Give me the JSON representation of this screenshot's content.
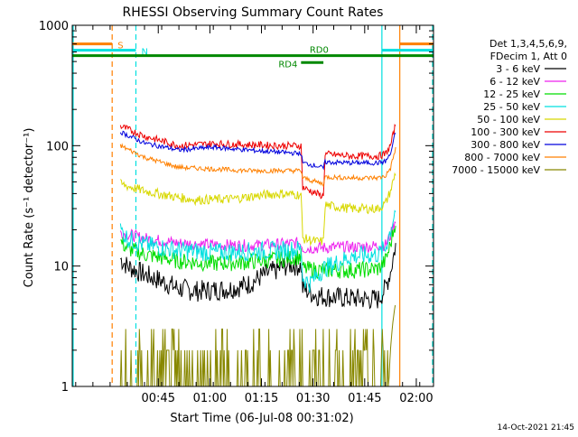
{
  "chart_data": {
    "type": "line",
    "title": "RHESSI Observing Summary Count Rates",
    "xlabel": "Start Time (06-Jul-08 00:31:02)",
    "ylabel": "Count Rate (s⁻¹ detector⁻¹)",
    "yscale": "log",
    "ylim": [
      1,
      1000
    ],
    "xlim_minutes_after_start": [
      -11,
      94
    ],
    "x_ticks": [
      "00:45",
      "01:00",
      "01:15",
      "01:30",
      "01:45",
      "02:00"
    ],
    "x_tick_minutes": [
      14,
      29,
      44,
      59,
      74,
      89
    ],
    "y_ticks": [
      "1",
      "10",
      "100",
      "1000"
    ],
    "y_tick_values": [
      1,
      10,
      100,
      1000
    ],
    "footer_date": "14-Oct-2021 21:45",
    "legend": {
      "header": [
        "Det 1,3,4,5,6,9,",
        "FDecim 1, Att 0"
      ],
      "entries": [
        {
          "label": "3 - 6 keV",
          "color": "#000000"
        },
        {
          "label": "6 - 12 keV",
          "color": "#ee22ee"
        },
        {
          "label": "12 - 25 keV",
          "color": "#00dd00"
        },
        {
          "label": "25 - 50 keV",
          "color": "#00e0e0"
        },
        {
          "label": "50 - 100 keV",
          "color": "#d8d800"
        },
        {
          "label": "100 - 300 keV",
          "color": "#ee0000"
        },
        {
          "label": "300 - 800 keV",
          "color": "#0000dd"
        },
        {
          "label": "800 - 7000 keV",
          "color": "#ff8000"
        },
        {
          "label": "7000 - 15000 keV",
          "color": "#888800"
        }
      ]
    },
    "flags": [
      {
        "label": "S",
        "color": "#ff8000",
        "value": 700,
        "x_start": -11,
        "x_end": 0.6,
        "x_end2": 96,
        "x_resume": 84.2
      },
      {
        "label": "N",
        "color": "#00e0e0",
        "value": 620,
        "x_start": -11,
        "x_end": 7.5,
        "x_end2": 96,
        "x_resume": 79
      },
      {
        "label": "RD0",
        "color": "#008800",
        "value": 560,
        "x_start": -11,
        "x_end": 96
      },
      {
        "label": "RD4",
        "color": "#008800",
        "value": 490,
        "x_start": 55.5,
        "x_end": 62
      }
    ],
    "vertical_markers": [
      {
        "minute": -11,
        "color": "#00e0e0",
        "style": "solid"
      },
      {
        "minute": 0.6,
        "color": "#ff8000",
        "style": "dashed"
      },
      {
        "minute": 7.5,
        "color": "#00e0e0",
        "style": "dashed"
      },
      {
        "minute": 79,
        "color": "#00e0e0",
        "style": "solid"
      },
      {
        "minute": 84.2,
        "color": "#ff8000",
        "style": "solid"
      },
      {
        "minute": 94,
        "color": "#ff8000",
        "style": "dashed"
      },
      {
        "minute": 94.5,
        "color": "#00e0e0",
        "style": "dashed"
      }
    ],
    "data_span_minutes": [
      3,
      83
    ],
    "series": [
      {
        "name": "3 - 6 keV",
        "color": "#000000",
        "noise": 0.09,
        "x": [
          3,
          5,
          10,
          15,
          20,
          25,
          30,
          35,
          40,
          44,
          48,
          52,
          55.5,
          56,
          60,
          65,
          70,
          75,
          78,
          80,
          81.5,
          83
        ],
        "values": [
          11.5,
          10,
          8.5,
          7.5,
          6.5,
          6.2,
          6.3,
          6.5,
          7,
          8.2,
          9.2,
          10.3,
          10,
          6.5,
          5.7,
          5.5,
          5.4,
          5.3,
          5.3,
          6.5,
          9,
          15
        ]
      },
      {
        "name": "6 - 12 keV",
        "color": "#ee22ee",
        "noise": 0.05,
        "x": [
          3,
          10,
          20,
          30,
          40,
          50,
          55.5,
          56,
          65,
          75,
          80,
          81.5,
          83
        ],
        "values": [
          19,
          17,
          15.5,
          15,
          14.8,
          15.2,
          15.6,
          14,
          14.3,
          14.5,
          15,
          18,
          25
        ]
      },
      {
        "name": "12 - 25 keV",
        "color": "#00dd00",
        "noise": 0.07,
        "x": [
          3,
          5,
          10,
          20,
          30,
          40,
          50,
          55.5,
          56,
          60,
          70,
          78,
          80,
          81.5,
          83
        ],
        "values": [
          16,
          14,
          12.5,
          11,
          10.5,
          10.8,
          11.5,
          12,
          9.5,
          9.3,
          9.2,
          9.5,
          11,
          15,
          24
        ]
      },
      {
        "name": "25 - 50 keV",
        "color": "#00e0e0",
        "noise": 0.08,
        "x": [
          3,
          5,
          10,
          20,
          30,
          40,
          50,
          55.5,
          56,
          58,
          62,
          70,
          78,
          80,
          81.5,
          83
        ],
        "values": [
          20,
          17,
          15,
          13.5,
          13,
          13.2,
          13.5,
          13.8,
          8,
          7.2,
          9.5,
          12,
          12.5,
          14,
          20,
          30
        ]
      },
      {
        "name": "50 - 100 keV",
        "color": "#d8d800",
        "noise": 0.04,
        "x": [
          3,
          10,
          20,
          25,
          35,
          45,
          50,
          55.5,
          56,
          60,
          62,
          62.5,
          70,
          78,
          80,
          81.5,
          83
        ],
        "values": [
          48,
          42,
          37,
          35.5,
          36,
          39,
          40,
          39,
          17,
          16,
          16,
          32,
          30,
          30,
          33,
          42,
          60
        ]
      },
      {
        "name": "100 - 300 keV",
        "color": "#ee0000",
        "noise": 0.03,
        "x": [
          3,
          10,
          20,
          30,
          40,
          50,
          55.5,
          56,
          60,
          62,
          62.5,
          70,
          78,
          80,
          81.5,
          83
        ],
        "values": [
          145,
          120,
          100,
          104,
          102,
          100,
          100,
          45,
          40,
          38,
          85,
          82,
          82,
          85,
          100,
          150
        ]
      },
      {
        "name": "300 - 800 keV",
        "color": "#0000dd",
        "noise": 0.02,
        "x": [
          3,
          10,
          20,
          30,
          40,
          50,
          55.5,
          56,
          60,
          62,
          62.5,
          70,
          78,
          80,
          81.5,
          83
        ],
        "values": [
          130,
          105,
          92,
          97,
          92,
          88,
          86,
          72,
          68,
          65,
          73,
          72,
          72,
          74,
          85,
          130
        ]
      },
      {
        "name": "800 - 7000 keV",
        "color": "#ff8000",
        "noise": 0.02,
        "x": [
          3,
          10,
          20,
          30,
          40,
          50,
          55.5,
          56,
          60,
          62,
          62.5,
          70,
          78,
          80,
          81.5,
          83
        ],
        "values": [
          100,
          80,
          66,
          64,
          62,
          62,
          62,
          54,
          50,
          48,
          55,
          54,
          54,
          56,
          65,
          95
        ]
      },
      {
        "name": "7000 - 15000 keV",
        "color": "#888800",
        "noise": 0,
        "x": [
          3,
          83
        ],
        "values": [
          1,
          1
        ]
      }
    ]
  }
}
